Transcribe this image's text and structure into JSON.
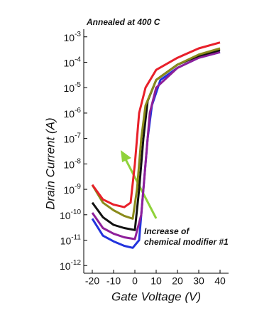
{
  "chart_data": {
    "type": "line",
    "title": "Annealed at 400 C",
    "x_label": "Gate Voltage (V)",
    "y_label": "Drain Current (A)",
    "annotation": [
      "Increase of",
      "chemical modifier #1"
    ],
    "log_y": true,
    "xlim": [
      -24,
      44
    ],
    "ylim": [
      5e-13,
      0.002
    ],
    "xticks": [
      -20,
      -10,
      0,
      10,
      20,
      30,
      40
    ],
    "yticks": [
      {
        "value": 0.001,
        "label": "10-3"
      },
      {
        "value": 0.0001,
        "label": "10-4"
      },
      {
        "value": 1e-05,
        "label": "10-5"
      },
      {
        "value": 1e-06,
        "label": "10-6"
      },
      {
        "value": 1e-07,
        "label": "10-7"
      },
      {
        "value": 1e-08,
        "label": "10-8"
      },
      {
        "value": 1e-09,
        "label": "10-9"
      },
      {
        "value": 1e-10,
        "label": "10-10"
      },
      {
        "value": 1e-11,
        "label": "10-11"
      },
      {
        "value": 1e-12,
        "label": "10-12"
      }
    ],
    "series": [
      {
        "color": "#e8202a",
        "x": [
          -20,
          -15,
          -10,
          -5,
          -2,
          0,
          2,
          5,
          10,
          20,
          30,
          40
        ],
        "values": [
          1.5e-09,
          4e-10,
          2.5e-10,
          2e-10,
          3e-10,
          1e-08,
          1e-06,
          1e-05,
          5e-05,
          0.00015,
          0.00035,
          0.0006
        ]
      },
      {
        "color": "#8a8a1a",
        "x": [
          -20,
          -15,
          -10,
          -5,
          -1,
          1,
          3,
          5,
          10,
          20,
          30,
          40
        ],
        "values": [
          1.5e-09,
          3e-10,
          1.5e-10,
          9e-11,
          7e-11,
          1e-09,
          1e-07,
          2e-06,
          2e-05,
          8e-05,
          0.0002,
          0.00035
        ]
      },
      {
        "color": "#111111",
        "x": [
          -20,
          -15,
          -10,
          -5,
          0,
          2,
          4,
          6,
          10,
          20,
          30,
          40
        ],
        "values": [
          3e-10,
          8e-11,
          4e-11,
          3e-11,
          2.5e-11,
          1e-09,
          1e-07,
          3e-06,
          2e-05,
          8e-05,
          0.00018,
          0.0003
        ]
      },
      {
        "color": "#8e1f9a",
        "x": [
          -20,
          -15,
          -10,
          -5,
          0,
          3,
          5,
          7,
          10,
          20,
          30,
          40
        ],
        "values": [
          1.2e-10,
          3e-11,
          1.8e-11,
          1.3e-11,
          1.1e-11,
          1e-10,
          1e-08,
          1e-06,
          1e-05,
          6e-05,
          0.00015,
          0.00025
        ]
      },
      {
        "color": "#2233dd",
        "x": [
          -20,
          -15,
          -10,
          -5,
          -1,
          2,
          4,
          6,
          8,
          12,
          20,
          30,
          40
        ],
        "values": [
          7e-11,
          1.5e-11,
          9e-12,
          6e-12,
          5e-12,
          1e-11,
          1e-09,
          1e-07,
          2e-06,
          2e-05,
          6e-05,
          0.00015,
          0.00025
        ]
      }
    ]
  }
}
